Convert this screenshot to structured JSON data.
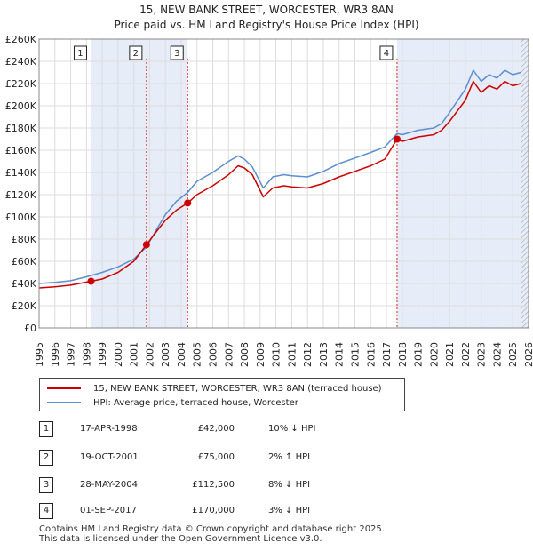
{
  "title_line1": "15, NEW BANK STREET, WORCESTER, WR3 8AN",
  "title_line2": "Price paid vs. HM Land Registry's House Price Index (HPI)",
  "chart_data": {
    "type": "line",
    "title": "15, NEW BANK STREET, WORCESTER, WR3 8AN — Price paid vs. HM Land Registry's House Price Index (HPI)",
    "xlim": [
      1995,
      2026
    ],
    "ylim": [
      0,
      260000
    ],
    "y_ticks": [
      0,
      20000,
      40000,
      60000,
      80000,
      100000,
      120000,
      140000,
      160000,
      180000,
      200000,
      220000,
      240000,
      260000
    ],
    "y_tick_labels": [
      "£0",
      "£20K",
      "£40K",
      "£60K",
      "£80K",
      "£100K",
      "£120K",
      "£140K",
      "£160K",
      "£180K",
      "£200K",
      "£220K",
      "£240K",
      "£260K"
    ],
    "x_ticks": [
      1995,
      1996,
      1997,
      1998,
      1999,
      2000,
      2001,
      2002,
      2003,
      2004,
      2005,
      2006,
      2007,
      2008,
      2009,
      2010,
      2011,
      2012,
      2013,
      2014,
      2015,
      2016,
      2017,
      2018,
      2019,
      2020,
      2021,
      2022,
      2023,
      2024,
      2025,
      2026
    ],
    "x_tick_labels": [
      "1995",
      "1996",
      "1997",
      "1998",
      "1999",
      "2000",
      "2001",
      "2002",
      "2003",
      "2004",
      "2005",
      "2006",
      "2007",
      "2008",
      "2009",
      "2010",
      "2011",
      "2012",
      "2013",
      "2014",
      "2015",
      "2016",
      "2017",
      "2018",
      "2019",
      "2020",
      "2021",
      "2022",
      "2023",
      "2024",
      "2025",
      "2026"
    ],
    "series": [
      {
        "name": "15, NEW BANK STREET, WORCESTER, WR3 8AN (terraced house)",
        "color": "#cc0000",
        "x": [
          1995.0,
          1996.0,
          1997.0,
          1998.29,
          1999.0,
          2000.0,
          2001.0,
          2001.8,
          2002.5,
          2003.0,
          2003.7,
          2004.41,
          2005.0,
          2006.0,
          2007.0,
          2007.6,
          2008.0,
          2008.5,
          2009.2,
          2009.8,
          2010.5,
          2011.0,
          2012.0,
          2013.0,
          2014.0,
          2015.0,
          2016.0,
          2016.9,
          2017.67,
          2018.0,
          2019.0,
          2020.0,
          2020.5,
          2021.0,
          2022.0,
          2022.5,
          2023.0,
          2023.5,
          2024.0,
          2024.5,
          2025.0,
          2025.5
        ],
        "values": [
          36000,
          37000,
          38500,
          42000,
          44000,
          50000,
          60000,
          75000,
          88000,
          97000,
          106000,
          112500,
          120000,
          128000,
          138000,
          146000,
          144000,
          138000,
          118000,
          126000,
          128000,
          127000,
          126000,
          130000,
          136000,
          141000,
          146000,
          152000,
          170000,
          168000,
          172000,
          174000,
          178000,
          186000,
          205000,
          222000,
          212000,
          218000,
          215000,
          222000,
          218000,
          220000
        ]
      },
      {
        "name": "HPI: Average price, terraced house, Worcester",
        "color": "#5b8fd0",
        "x": [
          1995.0,
          1996.0,
          1997.0,
          1998.0,
          1999.0,
          2000.0,
          2001.0,
          2001.8,
          2002.5,
          2003.0,
          2003.7,
          2004.41,
          2005.0,
          2006.0,
          2007.0,
          2007.6,
          2008.0,
          2008.5,
          2009.2,
          2009.8,
          2010.5,
          2011.0,
          2012.0,
          2013.0,
          2014.0,
          2015.0,
          2016.0,
          2016.9,
          2017.67,
          2018.0,
          2019.0,
          2020.0,
          2020.5,
          2021.0,
          2022.0,
          2022.5,
          2023.0,
          2023.5,
          2024.0,
          2024.5,
          2025.0,
          2025.5
        ],
        "values": [
          40000,
          41000,
          42500,
          46000,
          50000,
          55000,
          62000,
          73000,
          90000,
          102000,
          114000,
          122000,
          132000,
          140000,
          150000,
          155000,
          152000,
          145000,
          126000,
          136000,
          138000,
          137000,
          136000,
          141000,
          148000,
          153000,
          158000,
          163000,
          175000,
          174000,
          178000,
          180000,
          184000,
          194000,
          215000,
          232000,
          222000,
          228000,
          225000,
          232000,
          228000,
          230000
        ]
      }
    ],
    "sales": [
      {
        "label": "1",
        "x": 1998.29,
        "value": 42000
      },
      {
        "label": "2",
        "x": 2001.8,
        "value": 75000
      },
      {
        "label": "3",
        "x": 2004.41,
        "value": 112500
      },
      {
        "label": "4",
        "x": 2017.67,
        "value": 170000
      }
    ]
  },
  "legend": {
    "property": "15, NEW BANK STREET, WORCESTER, WR3 8AN (terraced house)",
    "hpi": "HPI: Average price, terraced house, Worcester"
  },
  "transactions": [
    {
      "num": "1",
      "date": "17-APR-1998",
      "price": "£42,000",
      "hpi": "10% ↓ HPI"
    },
    {
      "num": "2",
      "date": "19-OCT-2001",
      "price": "£75,000",
      "hpi": "2% ↑ HPI"
    },
    {
      "num": "3",
      "date": "28-MAY-2004",
      "price": "£112,500",
      "hpi": "8% ↓ HPI"
    },
    {
      "num": "4",
      "date": "01-SEP-2017",
      "price": "£170,000",
      "hpi": "3% ↓ HPI"
    }
  ],
  "footer": {
    "line1": "Contains HM Land Registry data © Crown copyright and database right 2025.",
    "line2": "This data is licensed under the Open Government Licence v3.0."
  }
}
